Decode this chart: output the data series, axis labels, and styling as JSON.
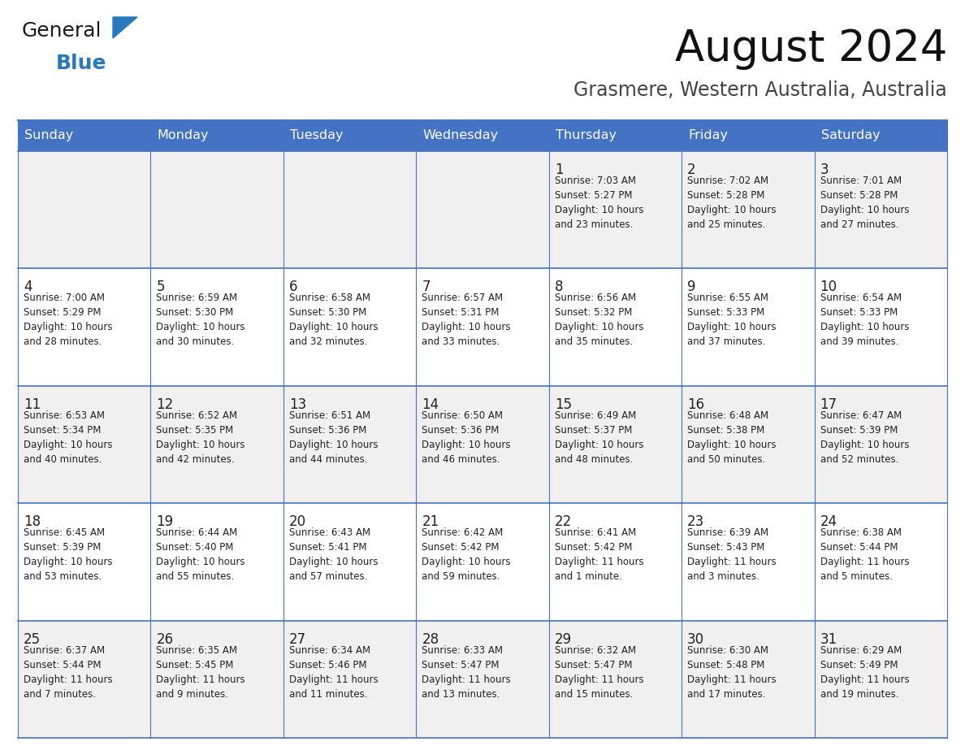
{
  "title": "August 2024",
  "subtitle": "Grasmere, Western Australia, Australia",
  "days_of_week": [
    "Sunday",
    "Monday",
    "Tuesday",
    "Wednesday",
    "Thursday",
    "Friday",
    "Saturday"
  ],
  "header_bg": "#4472C4",
  "header_text_color": "#FFFFFF",
  "cell_bg_odd": "#F0F0F0",
  "cell_bg_even": "#FFFFFF",
  "border_color": "#4472C4",
  "text_color": "#222222",
  "title_color": "#111111",
  "subtitle_color": "#444444",
  "logo_general_color": "#1a1a1a",
  "logo_blue_color": "#2878BE",
  "weeks": [
    [
      {
        "day": null,
        "sunrise": null,
        "sunset": null,
        "daylight": null
      },
      {
        "day": null,
        "sunrise": null,
        "sunset": null,
        "daylight": null
      },
      {
        "day": null,
        "sunrise": null,
        "sunset": null,
        "daylight": null
      },
      {
        "day": null,
        "sunrise": null,
        "sunset": null,
        "daylight": null
      },
      {
        "day": 1,
        "sunrise": "7:03 AM",
        "sunset": "5:27 PM",
        "daylight": "10 hours",
        "daylight2": "and 23 minutes."
      },
      {
        "day": 2,
        "sunrise": "7:02 AM",
        "sunset": "5:28 PM",
        "daylight": "10 hours",
        "daylight2": "and 25 minutes."
      },
      {
        "day": 3,
        "sunrise": "7:01 AM",
        "sunset": "5:28 PM",
        "daylight": "10 hours",
        "daylight2": "and 27 minutes."
      }
    ],
    [
      {
        "day": 4,
        "sunrise": "7:00 AM",
        "sunset": "5:29 PM",
        "daylight": "10 hours",
        "daylight2": "and 28 minutes."
      },
      {
        "day": 5,
        "sunrise": "6:59 AM",
        "sunset": "5:30 PM",
        "daylight": "10 hours",
        "daylight2": "and 30 minutes."
      },
      {
        "day": 6,
        "sunrise": "6:58 AM",
        "sunset": "5:30 PM",
        "daylight": "10 hours",
        "daylight2": "and 32 minutes."
      },
      {
        "day": 7,
        "sunrise": "6:57 AM",
        "sunset": "5:31 PM",
        "daylight": "10 hours",
        "daylight2": "and 33 minutes."
      },
      {
        "day": 8,
        "sunrise": "6:56 AM",
        "sunset": "5:32 PM",
        "daylight": "10 hours",
        "daylight2": "and 35 minutes."
      },
      {
        "day": 9,
        "sunrise": "6:55 AM",
        "sunset": "5:33 PM",
        "daylight": "10 hours",
        "daylight2": "and 37 minutes."
      },
      {
        "day": 10,
        "sunrise": "6:54 AM",
        "sunset": "5:33 PM",
        "daylight": "10 hours",
        "daylight2": "and 39 minutes."
      }
    ],
    [
      {
        "day": 11,
        "sunrise": "6:53 AM",
        "sunset": "5:34 PM",
        "daylight": "10 hours",
        "daylight2": "and 40 minutes."
      },
      {
        "day": 12,
        "sunrise": "6:52 AM",
        "sunset": "5:35 PM",
        "daylight": "10 hours",
        "daylight2": "and 42 minutes."
      },
      {
        "day": 13,
        "sunrise": "6:51 AM",
        "sunset": "5:36 PM",
        "daylight": "10 hours",
        "daylight2": "and 44 minutes."
      },
      {
        "day": 14,
        "sunrise": "6:50 AM",
        "sunset": "5:36 PM",
        "daylight": "10 hours",
        "daylight2": "and 46 minutes."
      },
      {
        "day": 15,
        "sunrise": "6:49 AM",
        "sunset": "5:37 PM",
        "daylight": "10 hours",
        "daylight2": "and 48 minutes."
      },
      {
        "day": 16,
        "sunrise": "6:48 AM",
        "sunset": "5:38 PM",
        "daylight": "10 hours",
        "daylight2": "and 50 minutes."
      },
      {
        "day": 17,
        "sunrise": "6:47 AM",
        "sunset": "5:39 PM",
        "daylight": "10 hours",
        "daylight2": "and 52 minutes."
      }
    ],
    [
      {
        "day": 18,
        "sunrise": "6:45 AM",
        "sunset": "5:39 PM",
        "daylight": "10 hours",
        "daylight2": "and 53 minutes."
      },
      {
        "day": 19,
        "sunrise": "6:44 AM",
        "sunset": "5:40 PM",
        "daylight": "10 hours",
        "daylight2": "and 55 minutes."
      },
      {
        "day": 20,
        "sunrise": "6:43 AM",
        "sunset": "5:41 PM",
        "daylight": "10 hours",
        "daylight2": "and 57 minutes."
      },
      {
        "day": 21,
        "sunrise": "6:42 AM",
        "sunset": "5:42 PM",
        "daylight": "10 hours",
        "daylight2": "and 59 minutes."
      },
      {
        "day": 22,
        "sunrise": "6:41 AM",
        "sunset": "5:42 PM",
        "daylight": "11 hours",
        "daylight2": "and 1 minute."
      },
      {
        "day": 23,
        "sunrise": "6:39 AM",
        "sunset": "5:43 PM",
        "daylight": "11 hours",
        "daylight2": "and 3 minutes."
      },
      {
        "day": 24,
        "sunrise": "6:38 AM",
        "sunset": "5:44 PM",
        "daylight": "11 hours",
        "daylight2": "and 5 minutes."
      }
    ],
    [
      {
        "day": 25,
        "sunrise": "6:37 AM",
        "sunset": "5:44 PM",
        "daylight": "11 hours",
        "daylight2": "and 7 minutes."
      },
      {
        "day": 26,
        "sunrise": "6:35 AM",
        "sunset": "5:45 PM",
        "daylight": "11 hours",
        "daylight2": "and 9 minutes."
      },
      {
        "day": 27,
        "sunrise": "6:34 AM",
        "sunset": "5:46 PM",
        "daylight": "11 hours",
        "daylight2": "and 11 minutes."
      },
      {
        "day": 28,
        "sunrise": "6:33 AM",
        "sunset": "5:47 PM",
        "daylight": "11 hours",
        "daylight2": "and 13 minutes."
      },
      {
        "day": 29,
        "sunrise": "6:32 AM",
        "sunset": "5:47 PM",
        "daylight": "11 hours",
        "daylight2": "and 15 minutes."
      },
      {
        "day": 30,
        "sunrise": "6:30 AM",
        "sunset": "5:48 PM",
        "daylight": "11 hours",
        "daylight2": "and 17 minutes."
      },
      {
        "day": 31,
        "sunrise": "6:29 AM",
        "sunset": "5:49 PM",
        "daylight": "11 hours",
        "daylight2": "and 19 minutes."
      }
    ]
  ]
}
